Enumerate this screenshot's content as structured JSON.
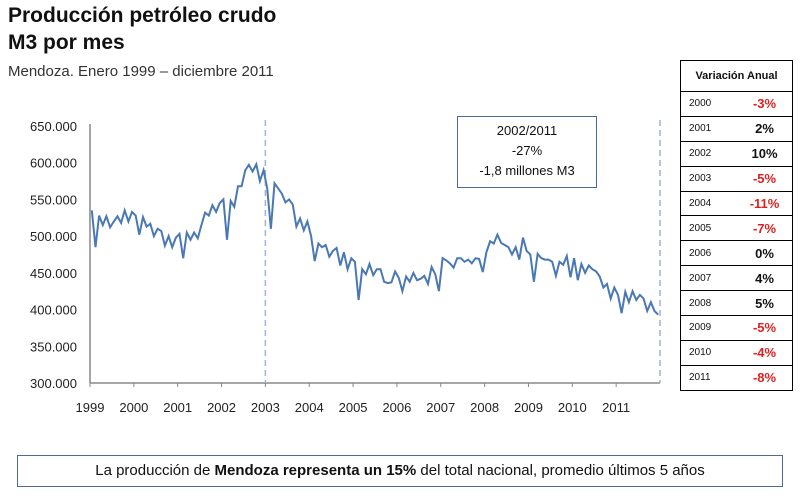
{
  "title_line1": "Producción petróleo crudo",
  "title_line2": "M3 por mes",
  "subtitle": "Mendoza. Enero 1999 – diciembre 2011",
  "annotation": {
    "line1": "2002/2011",
    "line2": "-27%",
    "line3": "-1,8 millones M3"
  },
  "table": {
    "header": "Variación Anual",
    "rows": [
      {
        "year": "2000",
        "value": "-3%"
      },
      {
        "year": "2001",
        "value": "2%"
      },
      {
        "year": "2002",
        "value": "10%"
      },
      {
        "year": "2003",
        "value": "-5%"
      },
      {
        "year": "2004",
        "value": "-11%"
      },
      {
        "year": "2005",
        "value": "-7%"
      },
      {
        "year": "2006",
        "value": "0%"
      },
      {
        "year": "2007",
        "value": "4%"
      },
      {
        "year": "2008",
        "value": "5%"
      },
      {
        "year": "2009",
        "value": "-5%"
      },
      {
        "year": "2010",
        "value": "-4%"
      },
      {
        "year": "2011",
        "value": "-8%"
      }
    ]
  },
  "footer": {
    "pre": "La producción de ",
    "bold": "Mendoza representa un 15%",
    "post": " del total nacional, promedio últimos 5 años"
  },
  "colors": {
    "line": "#4a78b5",
    "negative": "#e02020",
    "dashed": "#9db4d4"
  },
  "chart_data": {
    "type": "line",
    "ylim": [
      300000,
      650000
    ],
    "yticks": [
      "300.000",
      "350.000",
      "400.000",
      "450.000",
      "500.000",
      "550.000",
      "600.000",
      "650.000"
    ],
    "xticks": [
      "1999",
      "2000",
      "2001",
      "2002",
      "2003",
      "2004",
      "2005",
      "2006",
      "2007",
      "2008",
      "2009",
      "2010",
      "2011"
    ],
    "reference_lines": [
      "2003-01",
      "2011-12"
    ],
    "grid": false,
    "start": "1999-01",
    "frequency": "monthly",
    "values": [
      535000,
      485000,
      528000,
      515000,
      527000,
      512000,
      520000,
      527000,
      518000,
      535000,
      520000,
      533000,
      528000,
      502000,
      526000,
      513000,
      517000,
      500000,
      510000,
      507000,
      487000,
      500000,
      485000,
      498000,
      503000,
      470000,
      505000,
      495000,
      505000,
      497000,
      515000,
      532000,
      528000,
      542000,
      533000,
      545000,
      550000,
      495000,
      548000,
      540000,
      568000,
      568000,
      590000,
      597000,
      588000,
      598000,
      575000,
      590000,
      565000,
      510000,
      572000,
      565000,
      558000,
      546000,
      550000,
      543000,
      513000,
      524000,
      508000,
      520000,
      500000,
      466000,
      490000,
      485000,
      488000,
      472000,
      480000,
      484000,
      460000,
      478000,
      455000,
      470000,
      465000,
      413000,
      455000,
      448000,
      462000,
      447000,
      455000,
      455000,
      438000,
      436000,
      437000,
      452000,
      443000,
      425000,
      445000,
      438000,
      450000,
      440000,
      442000,
      446000,
      435000,
      458000,
      448000,
      425000,
      470000,
      467000,
      463000,
      457000,
      470000,
      470000,
      465000,
      468000,
      463000,
      470000,
      469000,
      451000,
      478000,
      493000,
      490000,
      502000,
      491000,
      488000,
      485000,
      475000,
      485000,
      468000,
      498000,
      480000,
      475000,
      438000,
      476000,
      470000,
      468000,
      468000,
      465000,
      446000,
      465000,
      461000,
      473000,
      444000,
      470000,
      440000,
      462000,
      450000,
      460000,
      455000,
      452000,
      445000,
      430000,
      435000,
      415000,
      430000,
      420000,
      395000,
      424000,
      410000,
      425000,
      413000,
      420000,
      415000,
      398000,
      410000,
      398000,
      393000
    ]
  }
}
